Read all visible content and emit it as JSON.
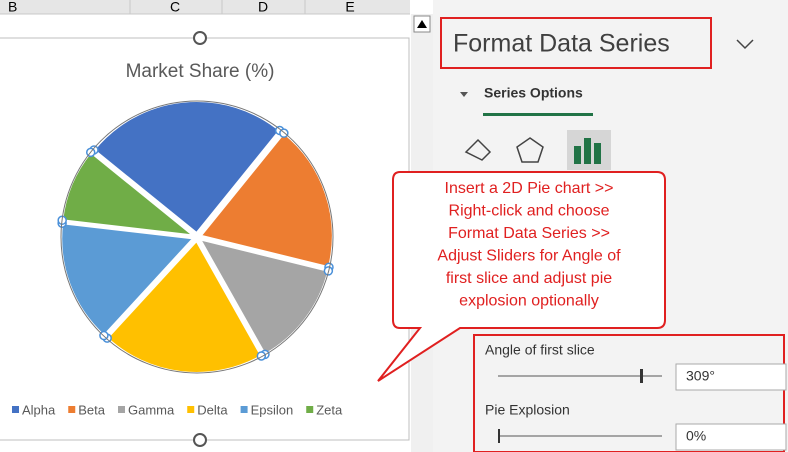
{
  "chart_data": {
    "type": "pie",
    "title": "Market Share (%)",
    "categories": [
      "Alpha",
      "Beta",
      "Gamma",
      "Delta",
      "Epsilon",
      "Zeta"
    ],
    "values": [
      25,
      18,
      13,
      20,
      15,
      9
    ],
    "colors": [
      "#4472c4",
      "#ed7d31",
      "#a5a5a5",
      "#ffc000",
      "#5b9bd5",
      "#70ad47"
    ],
    "start_angle": 309
  },
  "sheet": {
    "columns": [
      "B",
      "C",
      "D",
      "E"
    ]
  },
  "pane": {
    "title": "Format Data Series",
    "tab": "Series Options",
    "angle_label": "Angle of first slice",
    "angle_value": "309°",
    "explosion_label": "Pie Explosion",
    "explosion_value": "0%"
  },
  "callout": {
    "lines": [
      "Insert a 2D Pie chart >>",
      "Right-click and choose",
      "Format Data Series >>",
      "Adjust Sliders for Angle of",
      "first slice and adjust pie",
      "explosion optionally"
    ]
  }
}
